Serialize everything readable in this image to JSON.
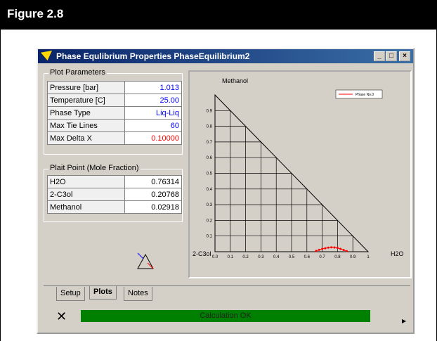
{
  "header": {
    "title": "Figure 2.8"
  },
  "window": {
    "title": "Phase Equlibrium Properties PhaseEquilibrium2"
  },
  "plot_parameters": {
    "title": "Plot Parameters",
    "rows": [
      [
        "Pressure [bar]",
        "1.013"
      ],
      [
        "Temperature [C]",
        "25.00"
      ],
      [
        "Phase Type",
        "Liq-Liq"
      ],
      [
        "Max Tie Lines",
        "60"
      ],
      [
        "Max Delta X",
        "0.10000"
      ]
    ]
  },
  "plait_point": {
    "title": "Plait Point (Mole Fraction)",
    "rows": [
      [
        "H2O",
        "0.76314"
      ],
      [
        "2-C3ol",
        "0.20768"
      ],
      [
        "Methanol",
        "0.02918"
      ]
    ]
  },
  "plot": {
    "type": "scatter",
    "top_label": "Methanol",
    "left_label": "2-C3ol",
    "right_label": "H2O",
    "xlim": [
      0,
      1
    ],
    "ylim": [
      0,
      1
    ],
    "xticks": [
      {
        "value": 0,
        "label": "0.0"
      },
      0.1,
      0.2,
      0.3,
      0.4,
      0.5,
      0.6,
      0.7,
      0.8,
      0.9,
      1
    ],
    "yticks": [
      0.1,
      0.2,
      0.3,
      0.4,
      0.5,
      0.6,
      0.7,
      0.8,
      0.9
    ],
    "grid": true,
    "series": [
      {
        "name": "Phase No.0",
        "color": "#ff0000",
        "x": [
          0.66,
          0.68,
          0.7,
          0.72,
          0.74,
          0.76,
          0.78,
          0.8,
          0.82,
          0.84,
          0.86
        ],
        "values": [
          0.005,
          0.012,
          0.018,
          0.022,
          0.026,
          0.028,
          0.027,
          0.024,
          0.018,
          0.011,
          0.004
        ]
      }
    ]
  },
  "tabs": [
    "Setup",
    "Plots",
    "Notes"
  ],
  "status": "Calculation OK"
}
